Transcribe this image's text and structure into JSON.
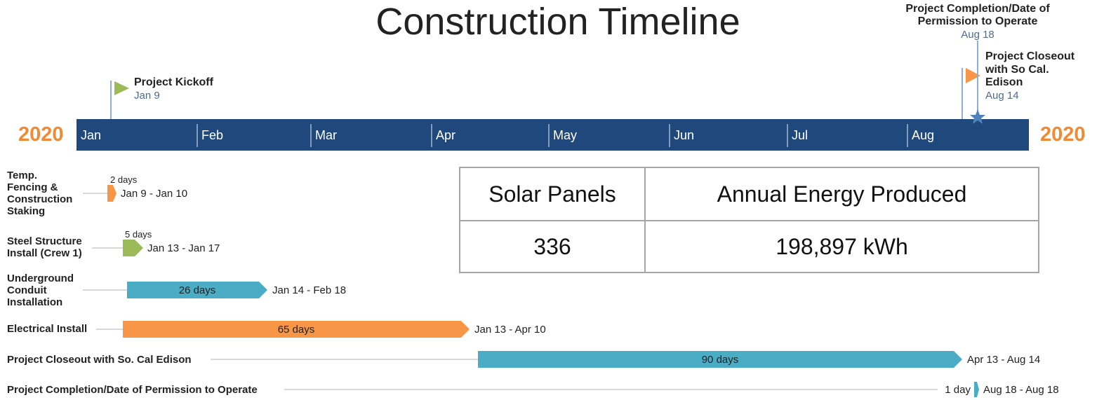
{
  "title": "Construction Timeline",
  "year_left": "2020",
  "year_right": "2020",
  "months": [
    "Jan",
    "Feb",
    "Mar",
    "Apr",
    "May",
    "Jun",
    "Jul",
    "Aug"
  ],
  "milestones": [
    {
      "label_lines": [
        "Project Kickoff"
      ],
      "date": "Jan 9"
    },
    {
      "label_lines": [
        "Project Closeout",
        "with So Cal.",
        "Edison"
      ],
      "date": "Aug 14"
    },
    {
      "label_lines": [
        "Project Completion/Date of",
        "Permission to Operate"
      ],
      "date": "Aug 18"
    }
  ],
  "tasks": [
    {
      "name_lines": [
        "Temp.",
        "Fencing &",
        "Construction",
        "Staking"
      ],
      "duration": "2 days",
      "dates": "Jan 9 - Jan 10"
    },
    {
      "name_lines": [
        "Steel Structure",
        "Install (Crew 1)"
      ],
      "duration": "5 days",
      "dates": "Jan 13 - Jan 17"
    },
    {
      "name_lines": [
        "Underground",
        "Conduit",
        "Installation"
      ],
      "duration": "26 days",
      "dates": "Jan 14 - Feb 18"
    },
    {
      "name_lines": [
        "Electrical Install"
      ],
      "duration": "65 days",
      "dates": "Jan 13 - Apr 10"
    },
    {
      "name_lines": [
        "Project Closeout with So. Cal Edison"
      ],
      "duration": "90 days",
      "dates": "Apr 13 - Aug 14"
    },
    {
      "name_lines": [
        "Project Completion/Date of Permission to Operate"
      ],
      "duration": "1 day",
      "dates": "Aug 18 - Aug 18"
    }
  ],
  "table": {
    "header": [
      "Solar Panels",
      "Annual Energy Produced"
    ],
    "rows": [
      [
        "336",
        "198,897 kWh"
      ]
    ]
  }
}
